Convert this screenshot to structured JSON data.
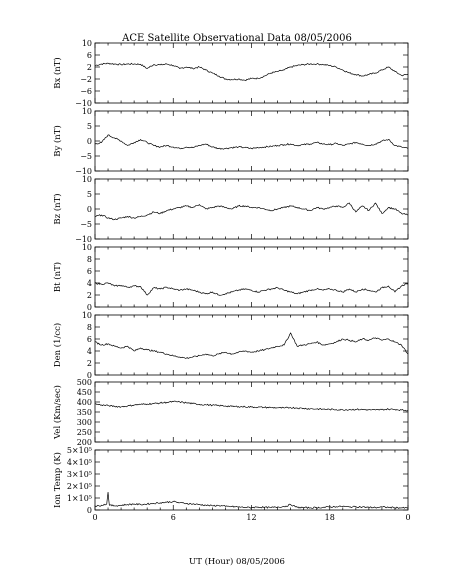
{
  "chart_data": {
    "type": "line",
    "title": "ACE Satellite Observational Data   08/05/2006",
    "xlabel": "UT (Hour)   08/05/2006",
    "x_ticks": [
      "0",
      "6",
      "12",
      "18",
      "0"
    ],
    "xlim": [
      0,
      24
    ],
    "line_color": "#000000",
    "panels": [
      {
        "ylabel": "Bx (nT)",
        "ylim": [
          -10,
          10
        ],
        "y_ticks": [
          10,
          6,
          2,
          -2,
          -6,
          -10
        ],
        "y_tick_labels": [
          "10",
          "6",
          "2",
          "−2",
          "−6",
          "−10"
        ],
        "x": [
          0,
          0.5,
          1,
          1.5,
          2,
          2.5,
          3,
          3.5,
          4,
          4.5,
          5,
          5.5,
          6,
          6.5,
          7,
          7.5,
          8,
          8.5,
          9,
          9.5,
          10,
          10.5,
          11,
          11.5,
          12,
          12.5,
          13,
          13.5,
          14,
          14.5,
          15,
          15.5,
          16,
          16.5,
          17,
          17.5,
          18,
          18.5,
          19,
          19.5,
          20,
          20.5,
          21,
          21.5,
          22,
          22.5,
          23,
          23.5,
          24
        ],
        "values": [
          2.5,
          3.0,
          3.2,
          3.0,
          2.8,
          3.0,
          3.0,
          2.9,
          1.5,
          2.8,
          2.7,
          3.0,
          2.5,
          1.5,
          2.0,
          1.5,
          2.0,
          1.0,
          0.0,
          -1.0,
          -2.0,
          -2.2,
          -2.0,
          -2.4,
          -1.8,
          -1.8,
          -1.0,
          0.0,
          0.5,
          1.0,
          2.0,
          2.5,
          2.8,
          3.0,
          3.0,
          2.8,
          2.5,
          2.0,
          1.0,
          0.0,
          -0.5,
          -1.0,
          -0.5,
          0.0,
          1.0,
          2.0,
          0.5,
          -0.8,
          -0.5
        ]
      },
      {
        "ylabel": "By (nT)",
        "ylim": [
          -10,
          10
        ],
        "y_ticks": [
          10,
          5,
          0,
          -5,
          -10
        ],
        "y_tick_labels": [
          "10",
          "5",
          "0",
          "−5",
          "−10"
        ],
        "x": [
          0,
          0.5,
          1,
          1.5,
          2,
          2.5,
          3,
          3.5,
          4,
          4.5,
          5,
          5.5,
          6,
          6.5,
          7,
          7.5,
          8,
          8.5,
          9,
          9.5,
          10,
          10.5,
          11,
          11.5,
          12,
          12.5,
          13,
          13.5,
          14,
          14.5,
          15,
          15.5,
          16,
          16.5,
          17,
          17.5,
          18,
          18.5,
          19,
          19.5,
          20,
          20.5,
          21,
          21.5,
          22,
          22.5,
          23,
          23.5,
          24
        ],
        "values": [
          -1.0,
          -0.5,
          2.0,
          1.0,
          0.0,
          -1.5,
          -0.5,
          0.5,
          -0.5,
          -1.5,
          -2.0,
          -1.5,
          -2.0,
          -2.5,
          -2.0,
          -2.2,
          -1.5,
          -1.0,
          -2.0,
          -2.5,
          -2.5,
          -2.2,
          -2.0,
          -2.2,
          -2.5,
          -2.2,
          -2.0,
          -1.8,
          -1.5,
          -1.2,
          -1.0,
          -1.5,
          -1.2,
          -1.0,
          -0.5,
          -1.0,
          -1.2,
          -0.8,
          -1.5,
          -1.0,
          -0.5,
          -1.0,
          -1.5,
          -1.0,
          0.0,
          0.5,
          -1.5,
          -2.0,
          -2.5
        ]
      },
      {
        "ylabel": "Bz (nT)",
        "ylim": [
          -10,
          10
        ],
        "y_ticks": [
          10,
          5,
          0,
          -5,
          -10
        ],
        "y_tick_labels": [
          "10",
          "5",
          "0",
          "−5",
          "−10"
        ],
        "x": [
          0,
          0.5,
          1,
          1.5,
          2,
          2.5,
          3,
          3.5,
          4,
          4.5,
          5,
          5.5,
          6,
          6.5,
          7,
          7.5,
          8,
          8.5,
          9,
          9.5,
          10,
          10.5,
          11,
          11.5,
          12,
          12.5,
          13,
          13.5,
          14,
          14.5,
          15,
          15.5,
          16,
          16.5,
          17,
          17.5,
          18,
          18.5,
          19,
          19.5,
          20,
          20.5,
          21,
          21.5,
          22,
          22.5,
          23,
          23.5,
          24
        ],
        "values": [
          -2.5,
          -2.0,
          -3.0,
          -3.5,
          -3.0,
          -2.5,
          -3.0,
          -2.5,
          -2.0,
          -1.0,
          -1.5,
          -0.5,
          0.0,
          0.5,
          1.0,
          0.5,
          1.5,
          0.0,
          0.5,
          1.0,
          0.5,
          0.0,
          1.0,
          1.0,
          0.5,
          0.5,
          0.0,
          -0.5,
          0.0,
          0.5,
          1.0,
          0.5,
          0.0,
          -0.5,
          0.5,
          0.0,
          0.5,
          1.0,
          0.5,
          2.0,
          -1.0,
          1.0,
          -0.5,
          2.0,
          -1.5,
          0.5,
          0.0,
          -1.5,
          -2.0
        ]
      },
      {
        "ylabel": "Bt (nT)",
        "ylim": [
          0,
          10
        ],
        "y_ticks": [
          10,
          8,
          6,
          4,
          2,
          0
        ],
        "y_tick_labels": [
          "10",
          "8",
          "6",
          "4",
          "2",
          "0"
        ],
        "x": [
          0,
          0.5,
          1,
          1.5,
          2,
          2.5,
          3,
          3.5,
          4,
          4.5,
          5,
          5.5,
          6,
          6.5,
          7,
          7.5,
          8,
          8.5,
          9,
          9.5,
          10,
          10.5,
          11,
          11.5,
          12,
          12.5,
          13,
          13.5,
          14,
          14.5,
          15,
          15.5,
          16,
          16.5,
          17,
          17.5,
          18,
          18.5,
          19,
          19.5,
          20,
          20.5,
          21,
          21.5,
          22,
          22.5,
          23,
          23.5,
          24
        ],
        "values": [
          4.0,
          3.8,
          4.0,
          3.5,
          3.6,
          3.3,
          3.5,
          3.4,
          2.0,
          3.2,
          3.0,
          3.3,
          3.0,
          2.8,
          3.0,
          2.8,
          2.5,
          2.2,
          2.5,
          2.0,
          2.2,
          2.5,
          2.8,
          3.0,
          2.8,
          2.5,
          2.8,
          3.0,
          3.2,
          2.8,
          2.5,
          2.2,
          2.5,
          2.8,
          3.0,
          2.8,
          3.0,
          2.8,
          2.5,
          3.0,
          2.5,
          3.0,
          2.8,
          2.5,
          3.2,
          3.5,
          2.5,
          3.5,
          4.0
        ]
      },
      {
        "ylabel": "Den (1/cc)",
        "ylim": [
          0,
          10
        ],
        "y_ticks": [
          10,
          8,
          6,
          4,
          2,
          0
        ],
        "y_tick_labels": [
          "10",
          "8",
          "6",
          "4",
          "2",
          "0"
        ],
        "x": [
          0,
          0.5,
          1,
          1.5,
          2,
          2.5,
          3,
          3.5,
          4,
          4.5,
          5,
          5.5,
          6,
          6.5,
          7,
          7.5,
          8,
          8.5,
          9,
          9.5,
          10,
          10.5,
          11,
          11.5,
          12,
          12.5,
          13,
          13.5,
          14,
          14.5,
          15,
          15.5,
          16,
          16.5,
          17,
          17.5,
          18,
          18.5,
          19,
          19.5,
          20,
          20.5,
          21,
          21.5,
          22,
          22.5,
          23,
          23.5,
          24
        ],
        "values": [
          5.5,
          5.0,
          5.2,
          4.8,
          4.5,
          4.8,
          4.0,
          4.5,
          4.2,
          4.0,
          3.8,
          3.5,
          3.2,
          3.0,
          2.8,
          3.0,
          3.2,
          3.5,
          3.2,
          3.5,
          3.8,
          3.5,
          3.8,
          4.0,
          3.8,
          4.0,
          4.2,
          4.5,
          4.8,
          5.0,
          7.0,
          4.8,
          5.0,
          5.2,
          5.5,
          5.0,
          5.2,
          5.5,
          6.0,
          5.8,
          5.5,
          6.0,
          5.8,
          6.2,
          5.8,
          6.0,
          5.5,
          5.0,
          3.5
        ]
      },
      {
        "ylabel": "Vel (Km/sec)",
        "ylim": [
          200,
          500
        ],
        "y_ticks": [
          500,
          450,
          400,
          350,
          300,
          250,
          200
        ],
        "y_tick_labels": [
          "500",
          "450",
          "400",
          "350",
          "300",
          "250",
          "200"
        ],
        "x": [
          0,
          0.5,
          1,
          1.5,
          2,
          2.5,
          3,
          3.5,
          4,
          4.5,
          5,
          5.5,
          6,
          6.5,
          7,
          7.5,
          8,
          8.5,
          9,
          9.5,
          10,
          10.5,
          11,
          11.5,
          12,
          12.5,
          13,
          13.5,
          14,
          14.5,
          15,
          15.5,
          16,
          16.5,
          17,
          17.5,
          18,
          18.5,
          19,
          19.5,
          20,
          20.5,
          21,
          21.5,
          22,
          22.5,
          23,
          23.5,
          24
        ],
        "values": [
          390,
          385,
          382,
          378,
          376,
          380,
          385,
          388,
          390,
          392,
          395,
          398,
          402,
          400,
          396,
          392,
          388,
          386,
          384,
          382,
          380,
          378,
          377,
          376,
          375,
          374,
          373,
          372,
          371,
          370,
          372,
          370,
          368,
          366,
          365,
          364,
          363,
          362,
          361,
          362,
          363,
          362,
          361,
          360,
          362,
          364,
          363,
          360,
          358
        ]
      },
      {
        "ylabel": "Ion Temp (K)",
        "ylim": [
          0,
          500000
        ],
        "y_ticks": [
          500000,
          400000,
          300000,
          200000,
          100000,
          0
        ],
        "y_tick_labels": [
          "5×10⁵",
          "4×10⁵",
          "3×10⁵",
          "2×10⁵",
          "1×10⁵",
          "0"
        ],
        "x": [
          0,
          0.5,
          0.9,
          1.0,
          1.1,
          1.5,
          2,
          2.5,
          3,
          3.5,
          4,
          4.5,
          5,
          5.5,
          6,
          6.5,
          7,
          7.5,
          8,
          8.5,
          9,
          9.5,
          10,
          10.5,
          11,
          11.5,
          12,
          12.5,
          13,
          13.5,
          14,
          14.5,
          15,
          15.5,
          16,
          16.5,
          17,
          17.5,
          18,
          18.5,
          19,
          19.5,
          20,
          20.5,
          21,
          21.5,
          22,
          22.5,
          23,
          23.5,
          24
        ],
        "values": [
          30000,
          40000,
          50000,
          150000,
          40000,
          35000,
          40000,
          45000,
          50000,
          45000,
          50000,
          55000,
          60000,
          65000,
          70000,
          60000,
          55000,
          50000,
          45000,
          40000,
          35000,
          38000,
          30000,
          28000,
          25000,
          22000,
          20000,
          25000,
          22000,
          20000,
          25000,
          28000,
          45000,
          22000,
          20000,
          18000,
          20000,
          22000,
          25000,
          28000,
          30000,
          25000,
          28000,
          25000,
          22000,
          20000,
          25000,
          22000,
          20000,
          18000,
          15000
        ]
      }
    ]
  }
}
